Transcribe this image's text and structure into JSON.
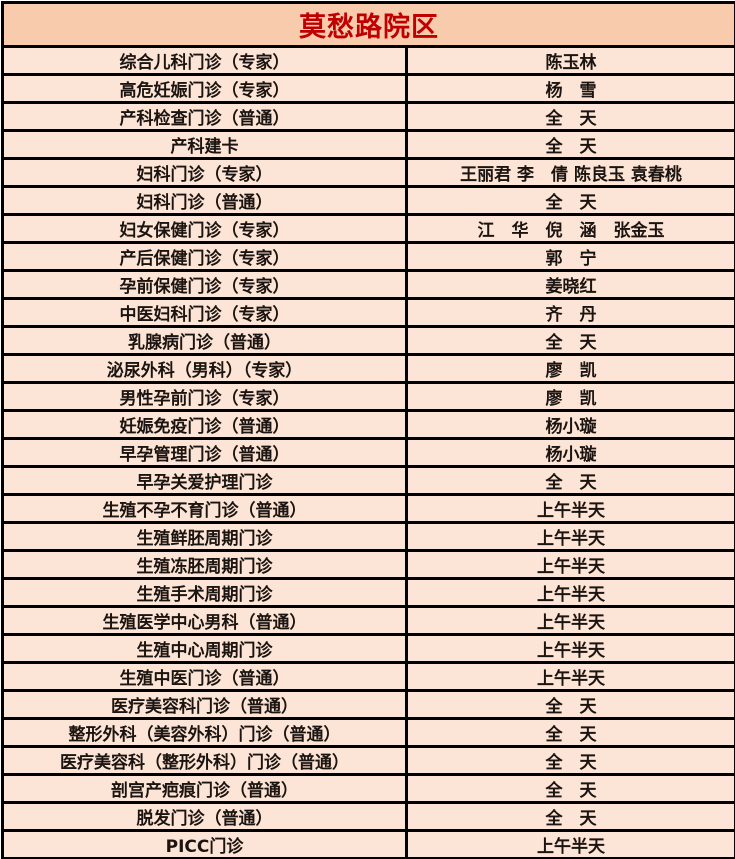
{
  "title": "莫愁路院区",
  "colors": {
    "header_bg": "#F8CBAD",
    "row_bg": "#FCE4D6",
    "border": "#000000",
    "title_text": "#C00000",
    "body_text": "#1C1410",
    "page_bg": "#FFFFFF"
  },
  "rows": [
    {
      "dept": "综合儿科门诊（专家）",
      "value": "陈玉林"
    },
    {
      "dept": "高危妊娠门诊（专家）",
      "value": "杨　雪"
    },
    {
      "dept": "产科检查门诊（普通）",
      "value": "全　天"
    },
    {
      "dept": "产科建卡",
      "value": "全　天"
    },
    {
      "dept": "妇科门诊（专家）",
      "value": "王丽君 李　倩 陈良玉 袁春桃"
    },
    {
      "dept": "妇科门诊（普通）",
      "value": "全　天"
    },
    {
      "dept": "妇女保健门诊（专家）",
      "value": "江　华　倪　涵　张金玉"
    },
    {
      "dept": "产后保健门诊（专家）",
      "value": "郭　宁"
    },
    {
      "dept": "孕前保健门诊（专家）",
      "value": "姜晓红"
    },
    {
      "dept": "中医妇科门诊（专家）",
      "value": "齐　丹"
    },
    {
      "dept": "乳腺病门诊（普通）",
      "value": "全　天"
    },
    {
      "dept": "泌尿外科（男科）（专家）",
      "value": "廖　凯"
    },
    {
      "dept": "男性孕前门诊（专家）",
      "value": "廖　凯"
    },
    {
      "dept": "妊娠免疫门诊（普通）",
      "value": "杨小璇"
    },
    {
      "dept": "早孕管理门诊（普通）",
      "value": "杨小璇"
    },
    {
      "dept": "早孕关爱护理门诊",
      "value": "全　天"
    },
    {
      "dept": "生殖不孕不育门诊（普通）",
      "value": "上午半天"
    },
    {
      "dept": "生殖鲜胚周期门诊",
      "value": "上午半天"
    },
    {
      "dept": "生殖冻胚周期门诊",
      "value": "上午半天"
    },
    {
      "dept": "生殖手术周期门诊",
      "value": "上午半天"
    },
    {
      "dept": "生殖医学中心男科（普通）",
      "value": "上午半天"
    },
    {
      "dept": "生殖中心周期门诊",
      "value": "上午半天"
    },
    {
      "dept": "生殖中医门诊（普通）",
      "value": "上午半天"
    },
    {
      "dept": "医疗美容科门诊（普通）",
      "value": "全　天"
    },
    {
      "dept": "整形外科（美容外科）门诊（普通）",
      "value": "全　天"
    },
    {
      "dept": "医疗美容科（整形外科）门诊（普通）",
      "value": "全　天"
    },
    {
      "dept": "剖宫产疤痕门诊（普通）",
      "value": "全　天"
    },
    {
      "dept": "脱发门诊（普通）",
      "value": "全　天"
    },
    {
      "dept": "PICC门诊",
      "value": "上午半天"
    }
  ]
}
